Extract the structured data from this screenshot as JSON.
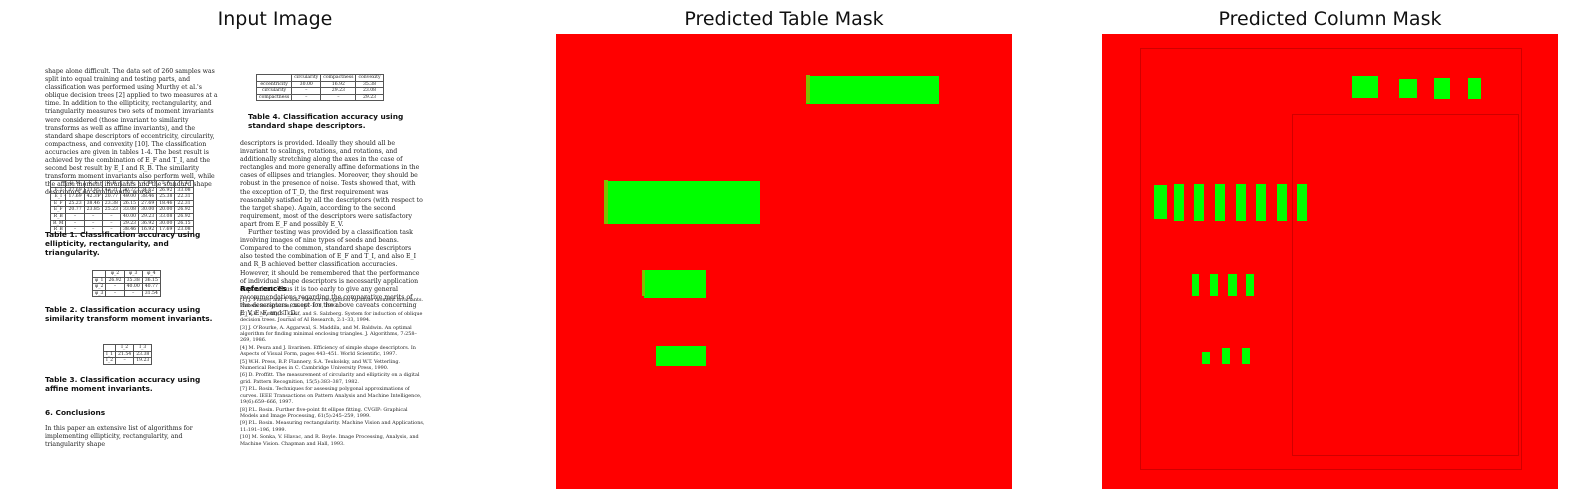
{
  "panels": {
    "input_title": "Input Image",
    "table_title": "Predicted Table Mask",
    "column_title": "Predicted Column Mask"
  },
  "document": {
    "col1_para1": "shape alone difficult. The data set of 260 samples was split into equal training and testing parts, and classification was performed using Murthy et al.'s oblique decision trees [2] applied to two measures at a time. In addition to the ellipticity, rectangularity, and triangularity measures two sets of moment invariants were considered (those invariant to similarity transforms as well as affine invariants), and the standard shape descriptors of eccentricity, circularity, compactness, and convexity [10]. The classification accuracies are given in tables 1-4. The best result is achieved by the combination of E_F and T_I, and the second best result by E_I and R_B. The similarity transform moment invariants also perform well, while the affine moment invariants and the standard shape descriptors do significantly worse.",
    "table1": {
      "header": [
        "",
        "E_M",
        "E_F",
        "R_B",
        "T_I",
        "T_B",
        "T_A",
        "T_T"
      ],
      "rows": [
        [
          "E_I",
          "37.69",
          "33.85",
          "42.31",
          "30.77",
          "34.62",
          "26.92",
          "33.08"
        ],
        [
          "E_I",
          "17.69",
          "42.31",
          "20.77",
          "40.00",
          "38.46",
          "25.38",
          "22.31"
        ],
        [
          "E_F",
          "25.23",
          "38.46",
          "23.38",
          "26.15",
          "27.69",
          "18.46",
          "22.31"
        ],
        [
          "E_F",
          "20.77",
          "23.85",
          "25.23",
          "33.08",
          "30.00",
          "20.00",
          "26.92"
        ],
        [
          "R_B",
          "–",
          "–",
          "–",
          "40.00",
          "29.23",
          "33.08",
          "26.92"
        ],
        [
          "R_M",
          "–",
          "–",
          "–",
          "29.23",
          "36.92",
          "30.00",
          "26.15"
        ],
        [
          "R_B",
          "–",
          "–",
          "–",
          "38.46",
          "16.92",
          "17.69",
          "23.08"
        ]
      ]
    },
    "table1_caption": "Table 1. Classification accuracy using ellipticity, rectangularity, and triangularity.",
    "table2": {
      "header": [
        "",
        "φ_2",
        "φ_3",
        "φ_4"
      ],
      "rows": [
        [
          "φ_1",
          "26.92",
          "35.38",
          "36.15"
        ],
        [
          "φ_2",
          "–",
          "40.00",
          "40.77"
        ],
        [
          "φ_3",
          "–",
          "–",
          "31.54"
        ]
      ]
    },
    "table2_caption": "Table 2. Classification accuracy using similarity transform moment invariants.",
    "table3": {
      "header": [
        "",
        "I_2",
        "I_3"
      ],
      "rows": [
        [
          "I_1",
          "21.54",
          "23.38"
        ],
        [
          "I_2",
          "–",
          "19.23"
        ]
      ]
    },
    "table3_caption": "Table 3. Classification accuracy using affine moment invariants.",
    "conclusions_heading": "6. Conclusions",
    "conclusions_text": "In this paper an extensive list of algorithms for implementing ellipticity, rectangularity, and triangularity shape",
    "table4": {
      "header": [
        "",
        "circularity",
        "compactness",
        "convexity"
      ],
      "rows": [
        [
          "eccentricity",
          "30.00",
          "16.92",
          "35.38"
        ],
        [
          "circularity",
          "–",
          "29.23",
          "23.08"
        ],
        [
          "compactness",
          "–",
          "–",
          "29.23"
        ]
      ]
    },
    "table4_caption": "Table 4. Classification accuracy using standard shape descriptors.",
    "col2_para1": "descriptors is provided. Ideally they should all be invariant to scalings, rotations, and rotations, and additionally stretching along the axes in the case of rectangles and more generally affine deformations in the cases of ellipses and triangles. Moreover, they should be robust in the presence of noise. Tests showed that, with the exception of T_D, the first requirement was reasonably satisfied by all the descriptors (with respect to the target shape). Again, according to the second requirement, most of the descriptors were satisfactory apart from E_F and possibly E_V.",
    "col2_para2": "Further testing was provided by a classification task involving images of nine types of seeds and beans. Compared to the common, standard shape descriptors also tested the combination of E_F and T_I, and also E_I and R_B achieved better classification accuracies. However, it should be remembered that the performance of individual shape descriptors is necessarily application dependent. Thus it is too early to give any general recommendations regarding the comparative merits of the descriptors except for the above caveats concerning E_V, E_F, and T_D.",
    "references_heading": "References",
    "references": [
      "[1] J. Flusser and T. Suk. Pattern recognition by affine moment invariants. Pattern Recognition, 26:167–174, 1993.",
      "[2] S.K. Murthy, S. Kasif, and S. Salzberg. System for induction of oblique decision trees. Journal of AI Research, 2:1–33, 1994.",
      "[3] J. O'Rourke, A. Aggarwal, S. Maddila, and M. Baldwin. An optimal algorithm for finding minimal enclosing triangles. J. Algorithms, 7:258–269, 1986.",
      "[4] M. Peura and J. Iivarinen. Efficiency of simple shape descriptors. In Aspects of Visual Form, pages 443–451. World Scientific, 1997.",
      "[5] W.H. Press, B.P. Flannery, S.A. Teukolsky, and W.T. Vetterling. Numerical Recipes in C. Cambridge University Press, 1990.",
      "[6] D. Proffitt. The measurement of circularity and ellipticity on a digital grid. Pattern Recognition, 15(5):383–387, 1982.",
      "[7] P.L. Rosin. Techniques for assessing polygonal approximations of curves. IEEE Transactions on Pattern Analysis and Machine Intelligence, 19(6):659–666, 1997.",
      "[8] P.L. Rosin. Further five-point fit ellipse fitting. CVGIP: Graphical Models and Image Processing, 61(5):245–259, 1999.",
      "[9] P.L. Rosin. Measuring rectangularity. Machine Vision and Applications, 11:191–196, 1999.",
      "[10] M. Sonka, V. Hlavac, and R. Boyle. Image Processing, Analysis, and Machine Vision. Chapman and Hall, 1993."
    ]
  },
  "colors": {
    "mask_background": "#ff0000",
    "mask_foreground": "#00ff00"
  }
}
